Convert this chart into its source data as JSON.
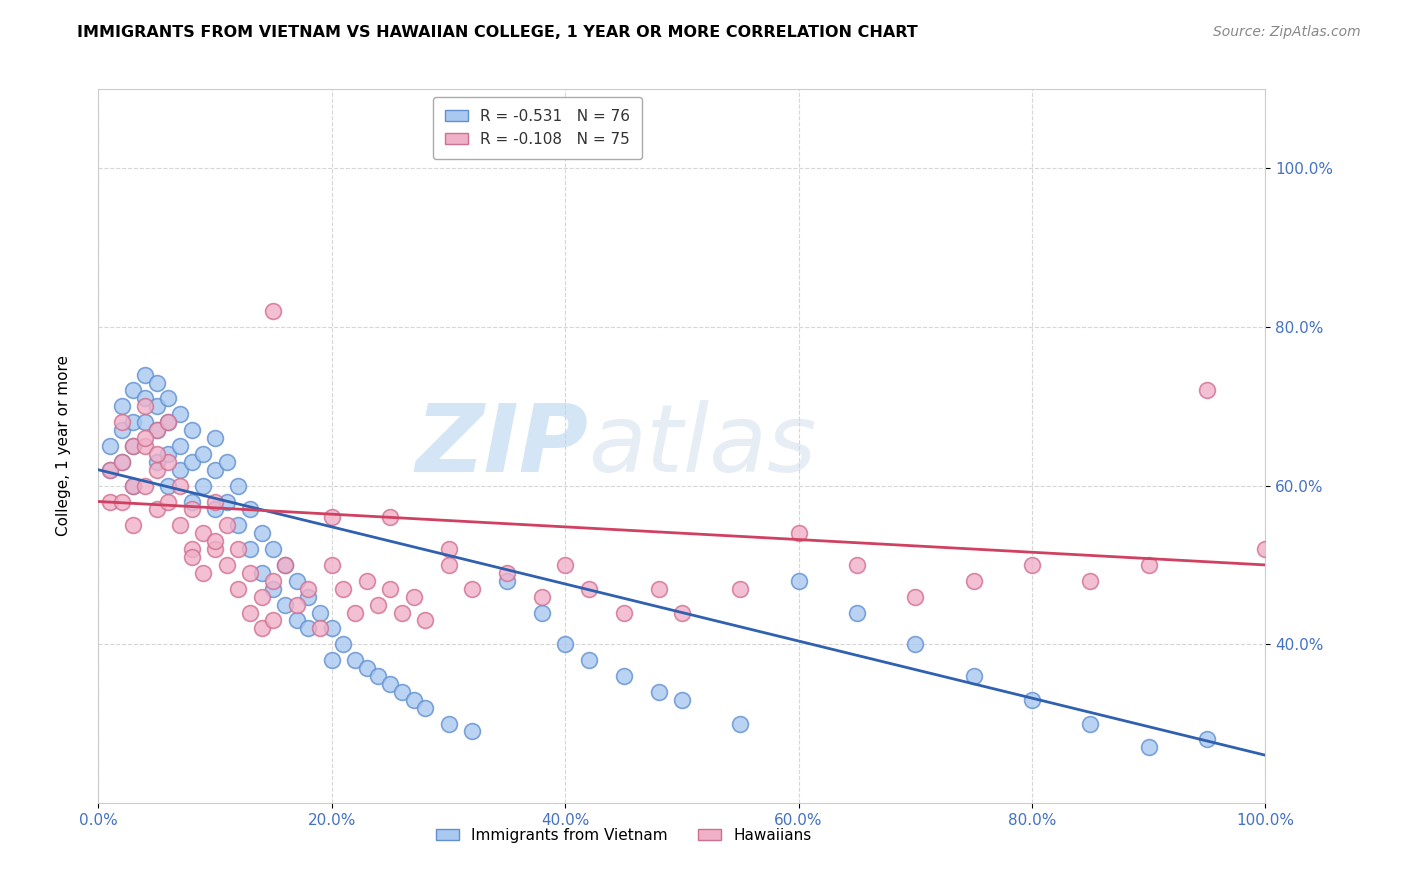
{
  "title": "IMMIGRANTS FROM VIETNAM VS HAWAIIAN COLLEGE, 1 YEAR OR MORE CORRELATION CHART",
  "source": "Source: ZipAtlas.com",
  "ylabel": "College, 1 year or more",
  "legend_label1": "Immigrants from Vietnam",
  "legend_label2": "Hawaiians",
  "R1": "-0.531",
  "N1": "76",
  "R2": "-0.108",
  "N2": "75",
  "blue_color": "#aac8f0",
  "blue_edge_color": "#6090d0",
  "pink_color": "#f0b0c8",
  "pink_edge_color": "#d07090",
  "blue_line_color": "#3060b0",
  "pink_line_color": "#d04060",
  "watermark_zip": "ZIP",
  "watermark_atlas": "atlas",
  "grid_color": "#cccccc",
  "axis_label_color": "#4472c4",
  "xlim": [
    0,
    100
  ],
  "ylim": [
    20,
    110
  ],
  "xticks": [
    0,
    20,
    40,
    60,
    80,
    100
  ],
  "xtick_labels": [
    "0.0%",
    "20.0%",
    "40.0%",
    "60.0%",
    "80.0%",
    "100.0%"
  ],
  "yticks": [
    40,
    60,
    80,
    100
  ],
  "ytick_labels": [
    "40.0%",
    "60.0%",
    "80.0%",
    "100.0%"
  ],
  "blue_line": [
    0,
    62,
    100,
    26
  ],
  "pink_line": [
    0,
    58,
    100,
    50
  ],
  "blue_x": [
    1,
    1,
    2,
    2,
    2,
    3,
    3,
    3,
    3,
    4,
    4,
    4,
    5,
    5,
    5,
    5,
    6,
    6,
    6,
    6,
    7,
    7,
    7,
    8,
    8,
    8,
    9,
    9,
    10,
    10,
    10,
    11,
    11,
    12,
    12,
    13,
    13,
    14,
    14,
    15,
    15,
    16,
    16,
    17,
    17,
    18,
    18,
    19,
    20,
    20,
    21,
    22,
    23,
    24,
    25,
    26,
    27,
    28,
    30,
    32,
    35,
    38,
    40,
    42,
    45,
    48,
    50,
    55,
    60,
    65,
    70,
    75,
    80,
    85,
    90,
    95
  ],
  "blue_y": [
    65,
    62,
    70,
    67,
    63,
    72,
    68,
    65,
    60,
    74,
    71,
    68,
    73,
    70,
    67,
    63,
    71,
    68,
    64,
    60,
    69,
    65,
    62,
    67,
    63,
    58,
    64,
    60,
    66,
    62,
    57,
    63,
    58,
    60,
    55,
    57,
    52,
    54,
    49,
    52,
    47,
    50,
    45,
    48,
    43,
    46,
    42,
    44,
    42,
    38,
    40,
    38,
    37,
    36,
    35,
    34,
    33,
    32,
    30,
    29,
    48,
    44,
    40,
    38,
    36,
    34,
    33,
    30,
    48,
    44,
    40,
    36,
    33,
    30,
    27,
    28
  ],
  "pink_x": [
    1,
    1,
    2,
    2,
    2,
    3,
    3,
    3,
    4,
    4,
    4,
    5,
    5,
    5,
    6,
    6,
    7,
    7,
    8,
    8,
    9,
    9,
    10,
    10,
    11,
    11,
    12,
    12,
    13,
    13,
    14,
    14,
    15,
    15,
    16,
    17,
    18,
    19,
    20,
    21,
    22,
    23,
    24,
    25,
    26,
    27,
    28,
    30,
    32,
    35,
    38,
    40,
    42,
    45,
    48,
    50,
    55,
    60,
    65,
    70,
    75,
    80,
    85,
    90,
    95,
    100,
    15,
    20,
    25,
    30,
    10,
    8,
    6,
    5,
    4
  ],
  "pink_y": [
    62,
    58,
    68,
    63,
    58,
    65,
    60,
    55,
    70,
    65,
    60,
    67,
    62,
    57,
    63,
    58,
    60,
    55,
    57,
    52,
    54,
    49,
    58,
    52,
    55,
    50,
    52,
    47,
    49,
    44,
    46,
    42,
    48,
    43,
    50,
    45,
    47,
    42,
    50,
    47,
    44,
    48,
    45,
    47,
    44,
    46,
    43,
    50,
    47,
    49,
    46,
    50,
    47,
    44,
    47,
    44,
    47,
    54,
    50,
    46,
    48,
    50,
    48,
    50,
    72,
    52,
    82,
    56,
    56,
    52,
    53,
    51,
    68,
    64,
    66
  ]
}
